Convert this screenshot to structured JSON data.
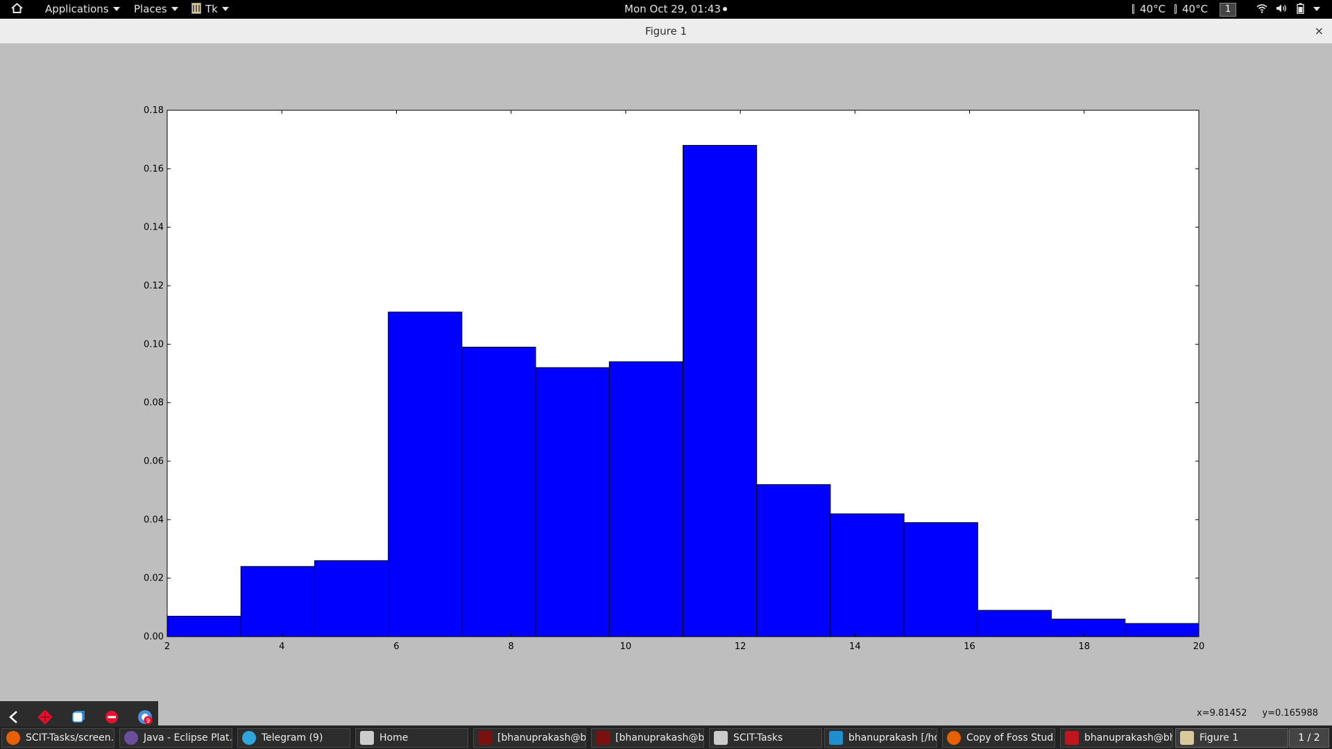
{
  "topbar": {
    "applications": "Applications",
    "places": "Places",
    "app_menu": "Tk",
    "clock": "Mon Oct 29, 01:43",
    "temp1": "40°C",
    "temp2": "40°C",
    "workspace": "1"
  },
  "window": {
    "title": "Figure 1",
    "close": "×"
  },
  "chart_data": {
    "type": "bar",
    "bin_edges": [
      2,
      3.2857,
      4.5714,
      5.8571,
      7.1429,
      8.4286,
      9.7143,
      11.0,
      12.2857,
      13.5714,
      14.8571,
      16.1429,
      17.4286,
      18.7143,
      20
    ],
    "values": [
      0.007,
      0.024,
      0.026,
      0.111,
      0.099,
      0.092,
      0.094,
      0.168,
      0.052,
      0.042,
      0.039,
      0.009,
      0.006,
      0.0045
    ],
    "xlim": [
      2,
      20
    ],
    "ylim": [
      0,
      0.18
    ],
    "xticks": [
      "2",
      "4",
      "6",
      "8",
      "10",
      "12",
      "14",
      "16",
      "18",
      "20"
    ],
    "yticks": [
      "0.00",
      "0.02",
      "0.04",
      "0.06",
      "0.08",
      "0.10",
      "0.12",
      "0.14",
      "0.16",
      "0.18"
    ],
    "bar_color": "#0000ff",
    "grid": false
  },
  "status": {
    "x": "x=9.81452",
    "y": "y=0.165988"
  },
  "toolbar": {
    "icons": [
      "back-icon",
      "move-icon",
      "zoom-icon",
      "configure-icon",
      "save-icon"
    ],
    "badge": "9"
  },
  "taskbar": {
    "items": [
      {
        "label": "SCIT-Tasks/screen...",
        "icon": "firefox-icon",
        "color": "#e66000"
      },
      {
        "label": "Java - Eclipse Plat...",
        "icon": "eclipse-icon",
        "color": "#6a4f9c"
      },
      {
        "label": "Telegram (9)",
        "icon": "telegram-icon",
        "color": "#2ea6dc"
      },
      {
        "label": "Home",
        "icon": "folder-icon",
        "color": "#cccccc"
      },
      {
        "label": "[bhanuprakash@b...",
        "icon": "terminal-icon",
        "color": "#7a1010"
      },
      {
        "label": "[bhanuprakash@b...",
        "icon": "terminal-icon",
        "color": "#7a1010"
      },
      {
        "label": "SCIT-Tasks",
        "icon": "folder-icon",
        "color": "#cccccc"
      },
      {
        "label": "bhanuprakash [/ho...",
        "icon": "webstorm-icon",
        "color": "#1f8fd0"
      },
      {
        "label": "Copy of Foss Stud...",
        "icon": "firefox-icon",
        "color": "#e66000"
      },
      {
        "label": "bhanuprakash@bh...",
        "icon": "terminal-icon",
        "color": "#c0141e"
      },
      {
        "label": "Figure 1",
        "icon": "tk-icon",
        "color": "#d8c89a"
      }
    ],
    "pager": "1 / 2"
  }
}
